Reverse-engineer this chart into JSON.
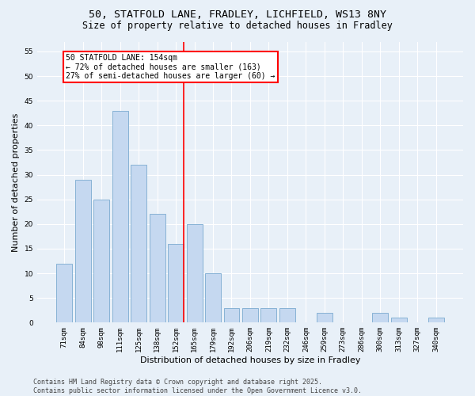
{
  "title_line1": "50, STATFOLD LANE, FRADLEY, LICHFIELD, WS13 8NY",
  "title_line2": "Size of property relative to detached houses in Fradley",
  "xlabel": "Distribution of detached houses by size in Fradley",
  "ylabel": "Number of detached properties",
  "categories": [
    "71sqm",
    "84sqm",
    "98sqm",
    "111sqm",
    "125sqm",
    "138sqm",
    "152sqm",
    "165sqm",
    "179sqm",
    "192sqm",
    "206sqm",
    "219sqm",
    "232sqm",
    "246sqm",
    "259sqm",
    "273sqm",
    "286sqm",
    "300sqm",
    "313sqm",
    "327sqm",
    "340sqm"
  ],
  "values": [
    12,
    29,
    25,
    43,
    32,
    22,
    16,
    20,
    10,
    3,
    3,
    3,
    3,
    0,
    2,
    0,
    0,
    2,
    1,
    0,
    1
  ],
  "bar_color": "#c5d8f0",
  "bar_edge_color": "#7aaad0",
  "red_line_index": 6,
  "annotation_text": "50 STATFOLD LANE: 154sqm\n← 72% of detached houses are smaller (163)\n27% of semi-detached houses are larger (60) →",
  "annotation_box_color": "white",
  "annotation_box_edge": "red",
  "ylim": [
    0,
    57
  ],
  "yticks": [
    0,
    5,
    10,
    15,
    20,
    25,
    30,
    35,
    40,
    45,
    50,
    55
  ],
  "background_color": "#e8f0f8",
  "grid_color": "white",
  "footer_text": "Contains HM Land Registry data © Crown copyright and database right 2025.\nContains public sector information licensed under the Open Government Licence v3.0.",
  "title_fontsize": 9.5,
  "subtitle_fontsize": 8.5,
  "axis_label_fontsize": 8,
  "tick_fontsize": 6.5,
  "annotation_fontsize": 7,
  "footer_fontsize": 6
}
